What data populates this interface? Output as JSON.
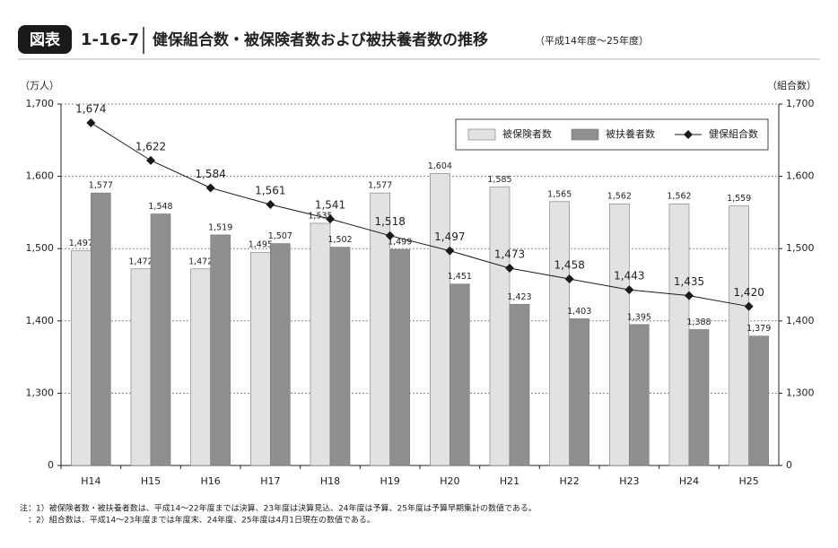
{
  "header": {
    "badge": "図表",
    "number": "1-16-7",
    "title": "健保組合数・被保険者数および被扶養者数の推移",
    "subtitle": "（平成14年度〜25年度）"
  },
  "chart_data": {
    "type": "bar_line",
    "ylabel": "（万人）",
    "y2label": "（組合数）",
    "categories": [
      "H14",
      "H15",
      "H16",
      "H17",
      "H18",
      "H19",
      "H20",
      "H21",
      "H22",
      "H23",
      "H24",
      "H25"
    ],
    "series": [
      {
        "name": "被保険者数",
        "type": "bar",
        "color": "#e2e2e2",
        "values": [
          1497,
          1472,
          1472,
          1495,
          1535,
          1577,
          1604,
          1585,
          1565,
          1562,
          1562,
          1559
        ],
        "value_labels": [
          "1,497",
          "1,472",
          "1,472",
          "1,495",
          "1,535",
          "1,577",
          "1,604",
          "1,585",
          "1,565",
          "1,562",
          "1,562",
          "1,559"
        ]
      },
      {
        "name": "被扶養者数",
        "type": "bar",
        "color": "#8f8f8f",
        "values": [
          1577,
          1548,
          1519,
          1507,
          1502,
          1499,
          1451,
          1423,
          1403,
          1395,
          1388,
          1379
        ],
        "value_labels": [
          "1,577",
          "1,548",
          "1,519",
          "1,507",
          "1,502",
          "1,499",
          "1,451",
          "1,423",
          "1,403",
          "1,395",
          "1,388",
          "1,379"
        ]
      },
      {
        "name": "健保組合数",
        "type": "line",
        "axis": "y2",
        "color": "#1a1a1a",
        "values": [
          1674,
          1622,
          1584,
          1561,
          1541,
          1518,
          1497,
          1473,
          1458,
          1443,
          1435,
          1420
        ],
        "value_labels": [
          "1,674",
          "1,622",
          "1,584",
          "1,561",
          "1,541",
          "1,518",
          "1,497",
          "1,473",
          "1,458",
          "1,443",
          "1,435",
          "1,420"
        ]
      }
    ],
    "ylim": [
      0,
      1700
    ],
    "ybreak": [
      0,
      1300
    ],
    "yticks": [
      0,
      {
        "value": 1300,
        "label": "1,300"
      },
      {
        "value": 1400,
        "label": "1,400"
      },
      {
        "value": 1500,
        "label": "1,500"
      },
      {
        "value": 1600,
        "label": "1,600"
      },
      {
        "value": 1700,
        "label": "1,700"
      }
    ],
    "y2lim": [
      0,
      1700
    ],
    "y2break": [
      0,
      1300
    ],
    "y2ticks": [
      0,
      {
        "value": 1300,
        "label": "1,300"
      },
      {
        "value": 1400,
        "label": "1,400"
      },
      {
        "value": 1500,
        "label": "1,500"
      },
      {
        "value": 1600,
        "label": "1,600"
      },
      {
        "value": 1700,
        "label": "1,700"
      }
    ],
    "grid": true,
    "legend": "upper right"
  },
  "notes": [
    "注：1）被保険者数・被扶養者数は、平成14〜22年度までは決算、23年度は決算見込、24年度は予算、25年度は予算早期集計の数値である。",
    "　：2）組合数は、平成14〜23年度までは年度末、24年度、25年度は4月1日現在の数値である。"
  ]
}
